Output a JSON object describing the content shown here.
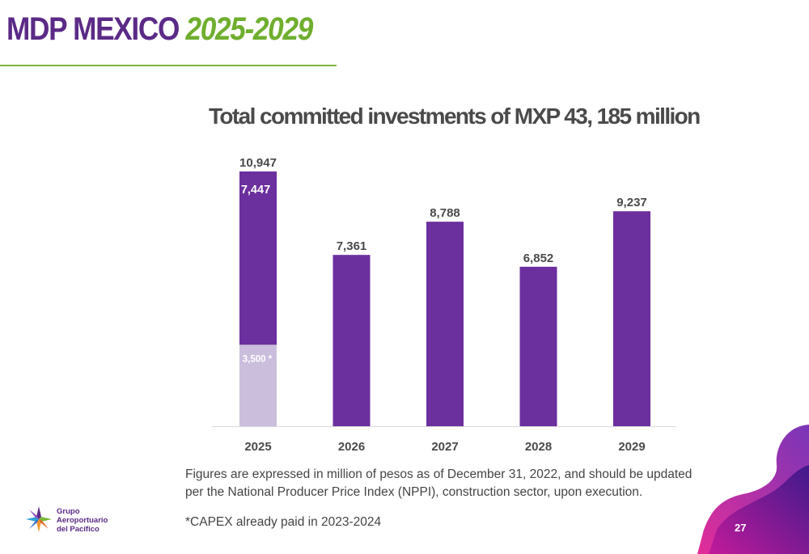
{
  "slide": {
    "title_main": "MDP MEXICO",
    "title_years": "2025-2029",
    "page_number": "27"
  },
  "chart_data": {
    "type": "bar",
    "title": "Total committed investments of MXP 43, 185 million",
    "categories": [
      "2025",
      "2026",
      "2027",
      "2028",
      "2029"
    ],
    "series": [
      {
        "values": [
          3500,
          null,
          null,
          null,
          null
        ],
        "color": "#cbbedd",
        "labels": [
          "3,500 *",
          null,
          null,
          null,
          null
        ]
      },
      {
        "values": [
          7447,
          7361,
          8788,
          6852,
          9237
        ],
        "color": "#6b2f9e",
        "labels": [
          "7,447",
          null,
          null,
          null,
          null
        ]
      }
    ],
    "totals": [
      "10,947",
      "7,361",
      "8,788",
      "6,852",
      "9,237"
    ],
    "ylim": [
      0,
      11000
    ],
    "grid": false
  },
  "notes": {
    "units": "Figures are expressed in million of pesos as of December 31, 2022, and should be updated per the National Producer Price Index (NPPI), construction sector, upon execution.",
    "footnote": "*CAPEX already paid in 2023-2024"
  },
  "logo": {
    "text": "Grupo\nAeroportuario\ndel Pacífico",
    "icon": "gap-star-logo-icon"
  },
  "colors": {
    "purple": "#6b2f9e",
    "light_purple": "#cbbedd",
    "green": "#7ab83a",
    "title_purple": "#5b2a86"
  }
}
